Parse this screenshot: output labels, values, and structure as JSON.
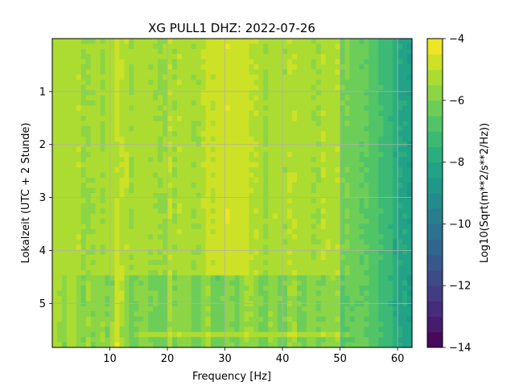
{
  "chart_data": {
    "type": "heatmap",
    "title": "XG PULL1  DHZ: 2022-07-26",
    "xlabel": "Frequency [Hz]",
    "ylabel": "Lokalzeit (UTC + 2 Stunde)",
    "xlim": [
      0,
      62.5
    ],
    "ylim": [
      5.83,
      0
    ],
    "x_ticks": [
      10,
      20,
      30,
      40,
      50,
      60
    ],
    "y_ticks": [
      1,
      2,
      3,
      4,
      5
    ],
    "grid": true,
    "colormap": "viridis",
    "colorbar": {
      "label": "Log10(Sqrt(m**2/s**2/Hz))",
      "range": [
        -14,
        -4
      ],
      "ticks": [
        -4,
        -6,
        -8,
        -10,
        -12,
        -14
      ],
      "tick_labels": [
        "−4",
        "−6",
        "−8",
        "−10",
        "−12",
        "−14"
      ],
      "levels": 20
    },
    "features": [
      {
        "label": "tremor band",
        "freq_hz": [
          10.5,
          12.5
        ],
        "value": -4.8
      },
      {
        "label": "high-energy band",
        "freq_hz": [
          27,
          33
        ],
        "value": -4.5,
        "time_h": [
          0,
          4.5
        ]
      },
      {
        "label": "step after",
        "time_h": 4.5,
        "freq_hz": [
          22,
          58
        ],
        "value": -5.6
      },
      {
        "label": "high-frequency falloff",
        "freq_hz": [
          50,
          62.5
        ],
        "value_range": [
          -5.8,
          -8.6
        ]
      }
    ]
  }
}
